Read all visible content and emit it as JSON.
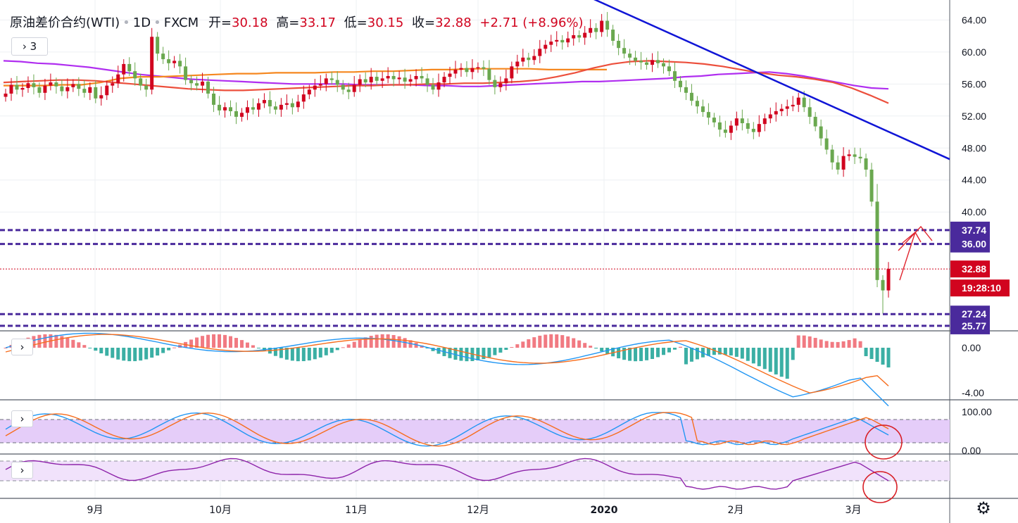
{
  "legend": {
    "symbol": "原油差价合约(WTI)",
    "interval": "1D",
    "source": "FXCM",
    "open_label": "开=",
    "open": "30.18",
    "high_label": "高=",
    "high": "33.17",
    "low_label": "低=",
    "low": "30.15",
    "close_label": "收=",
    "close": "32.88",
    "change": "+2.71 (+8.96%)"
  },
  "indicator_toggle": {
    "arrow": "›",
    "count": "3"
  },
  "pane_toggle_arrow": "›",
  "settings_icon": "gear-icon",
  "colors": {
    "up": "#d1041f",
    "down": "#6aa84f",
    "trendline": "#1015d6",
    "level": "#4a2a9c",
    "ma_purple": "#b02ef0",
    "ma_orange": "#f5871f",
    "ma_red": "#ec4f3c",
    "macd_blue": "#2196f3",
    "macd_orange": "#f76d1c",
    "rsi_band": "#e5cdf9",
    "cci_band": "#f1e2fb"
  },
  "chart_data": {
    "type": "candlestick",
    "y_range": [
      25.5,
      66.5
    ],
    "y_ticks": [
      "64.00",
      "60.00",
      "56.00",
      "52.00",
      "48.00",
      "44.00",
      "40.00"
    ],
    "x_labels": [
      "9月",
      "10月",
      "11月",
      "12月",
      "2020",
      "2月",
      "3月"
    ],
    "price_labels": [
      {
        "text": "37.74",
        "value": 37.74,
        "kind": "level"
      },
      {
        "text": "36.00",
        "value": 36.0,
        "kind": "level"
      },
      {
        "text": "32.88",
        "value": 32.88,
        "kind": "last"
      },
      {
        "text": "19:28:10",
        "kind": "countdown"
      },
      {
        "text": "27.24",
        "value": 27.24,
        "kind": "level"
      },
      {
        "text": "25.77",
        "value": 25.77,
        "kind": "level"
      }
    ],
    "horizontal_levels": [
      37.74,
      36.0,
      27.24,
      25.77
    ],
    "last_price": 32.88,
    "closes": [
      54.8,
      55.9,
      55.3,
      55.5,
      56.1,
      55.6,
      54.9,
      55.8,
      56.2,
      55.7,
      55.1,
      55.6,
      56.0,
      55.4,
      54.9,
      55.6,
      54.2,
      54.6,
      55.8,
      56.1,
      57.2,
      58.5,
      57.6,
      56.7,
      55.8,
      55.3,
      61.9,
      59.8,
      59.1,
      58.6,
      58.9,
      58.2,
      56.5,
      56.1,
      55.8,
      56.3,
      54.8,
      53.4,
      52.7,
      53.1,
      52.6,
      51.9,
      52.4,
      53.1,
      52.8,
      53.6,
      54.0,
      53.2,
      52.8,
      53.4,
      53.6,
      53.1,
      53.8,
      54.7,
      55.3,
      55.8,
      56.0,
      56.7,
      56.5,
      55.9,
      55.3,
      55.0,
      55.9,
      56.6,
      56.2,
      56.9,
      56.4,
      56.7,
      57.0,
      56.6,
      56.8,
      56.3,
      56.6,
      57.0,
      56.7,
      55.9,
      55.3,
      56.2,
      56.9,
      57.3,
      57.8,
      58.0,
      57.5,
      58.0,
      58.1,
      57.9,
      56.5,
      55.6,
      56.1,
      56.7,
      58.2,
      58.8,
      59.3,
      59.0,
      59.5,
      60.4,
      60.9,
      61.3,
      61.5,
      61.2,
      61.7,
      62.1,
      61.8,
      62.4,
      63.0,
      62.5,
      63.9,
      62.8,
      61.4,
      60.5,
      59.8,
      59.3,
      58.9,
      58.7,
      58.4,
      59.0,
      58.6,
      58.2,
      57.6,
      56.4,
      55.6,
      54.9,
      53.9,
      53.2,
      52.5,
      51.8,
      51.2,
      50.3,
      49.9,
      50.8,
      51.7,
      51.1,
      50.4,
      50.0,
      51.0,
      51.7,
      52.2,
      52.6,
      52.9,
      53.2,
      53.4,
      54.3,
      53.1,
      51.9,
      50.7,
      49.2,
      47.8,
      46.2,
      45.3,
      47.0,
      47.2,
      46.9,
      46.7,
      45.3,
      41.3,
      31.5,
      30.2,
      32.9
    ],
    "ma_purple": [
      58.9,
      58.8,
      58.6,
      58.5,
      58.3,
      58.1,
      57.8,
      57.5,
      57.2,
      57.0,
      56.8,
      56.6,
      56.5,
      56.4,
      56.3,
      56.2,
      56.1,
      56.0,
      56.0,
      56.0,
      56.0,
      55.9,
      55.9,
      55.9,
      55.9,
      55.8,
      55.8,
      55.7,
      55.7,
      55.8,
      55.9,
      56.0,
      56.1,
      56.2,
      56.3,
      56.3,
      56.4,
      56.5,
      56.6,
      56.7,
      56.9,
      57.0,
      57.2,
      57.3,
      57.4,
      57.5,
      57.3,
      57.0,
      56.6,
      56.2,
      55.8,
      55.5,
      55.4
    ],
    "ma_orange": [
      55.8,
      55.8,
      55.8,
      55.9,
      55.9,
      56.2,
      56.7,
      56.9,
      56.9,
      57.0,
      57.1,
      57.2,
      57.3,
      57.3,
      57.4,
      57.4,
      57.4,
      57.5,
      57.5,
      57.6,
      57.6,
      57.7,
      57.8,
      57.8,
      57.9,
      57.9,
      57.9,
      57.9,
      57.8,
      57.8,
      57.8,
      57.8
    ],
    "ma_red": [
      56.2,
      56.3,
      56.4,
      56.5,
      56.5,
      56.4,
      56.2,
      56.0,
      55.8,
      55.6,
      55.4,
      55.3,
      55.2,
      55.2,
      55.3,
      55.4,
      55.5,
      55.6,
      55.7,
      55.8,
      55.8,
      55.9,
      55.9,
      56.0,
      56.0,
      56.1,
      56.1,
      56.2,
      56.3,
      56.5,
      56.9,
      57.4,
      58.0,
      58.5,
      58.8,
      58.9,
      58.8,
      58.7,
      58.5,
      58.2,
      57.8,
      57.4,
      57.1,
      56.9,
      56.6,
      56.2,
      55.5,
      54.6,
      53.6
    ],
    "trendline": [
      [
        863,
        66.5
      ],
      [
        1349,
        46.6
      ]
    ],
    "annotations": [
      "red arrow pointing up toward 37.74",
      "red circle on RSI pane",
      "red circle on CCI pane"
    ],
    "panes": [
      {
        "name": "MACD",
        "y_ticks": [
          "0.00",
          "-4.00"
        ]
      },
      {
        "name": "RSI",
        "y_ticks": [
          "100.00",
          "0.00"
        ]
      },
      {
        "name": "CCI",
        "y_ticks": []
      }
    ]
  }
}
